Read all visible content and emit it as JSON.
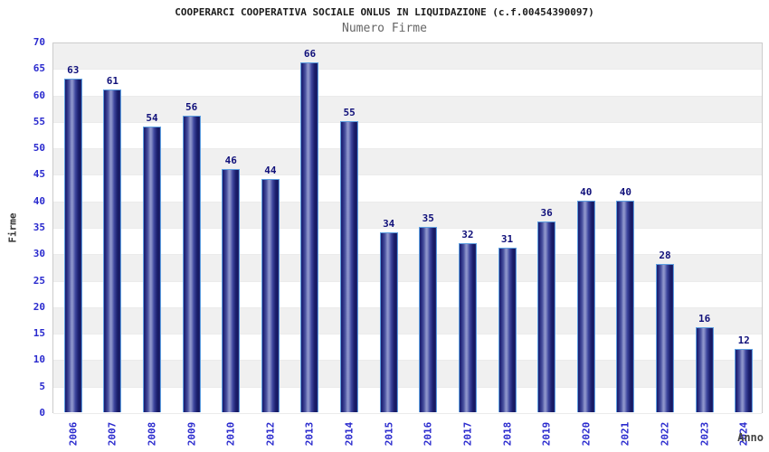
{
  "header": {
    "title": "COOPERARCI COOPERATIVA SOCIALE ONLUS IN LIQUIDAZIONE (c.f.00454390097)",
    "subtitle": "Numero Firme"
  },
  "chart_data": {
    "type": "bar",
    "title": "COOPERARCI COOPERATIVA SOCIALE ONLUS IN LIQUIDAZIONE (c.f.00454390097)",
    "subtitle": "Numero Firme",
    "xlabel": "Anno",
    "ylabel": "Firme",
    "categories": [
      "2006",
      "2007",
      "2008",
      "2009",
      "2010",
      "2012",
      "2013",
      "2014",
      "2015",
      "2016",
      "2017",
      "2018",
      "2019",
      "2020",
      "2021",
      "2022",
      "2023",
      "2024"
    ],
    "values": [
      63,
      61,
      54,
      56,
      46,
      44,
      66,
      55,
      34,
      35,
      32,
      31,
      36,
      40,
      40,
      28,
      16,
      12
    ],
    "ylim": [
      0,
      70
    ],
    "ytick_step": 5,
    "yticks": [
      0,
      5,
      10,
      15,
      20,
      25,
      30,
      35,
      40,
      45,
      50,
      55,
      60,
      65,
      70
    ],
    "grid": "alternating-bands",
    "legend": "none",
    "colors": {
      "bar_dark": "#1a1e6e",
      "bar_highlight": "#9097cd",
      "bar_border": "#5e9fe0",
      "tick_label": "#2a2ace",
      "value_label": "#10107a",
      "band_gray": "#f0f0f0",
      "title": "#1c1c1c",
      "subtitle": "#666666",
      "axis_title": "#333333",
      "plot_border": "#cccccc"
    }
  }
}
